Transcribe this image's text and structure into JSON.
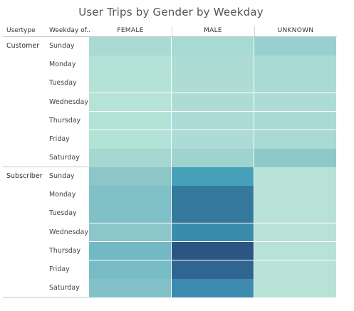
{
  "chart_data": {
    "type": "heatmap",
    "title": "User Trips by Gender by Weekday",
    "row_headers": [
      "Usertype",
      "Weekday of.."
    ],
    "columns": [
      "FEMALE",
      "MALE",
      "UNKNOWN"
    ],
    "groups": [
      {
        "name": "Customer",
        "rows": [
          "Sunday",
          "Monday",
          "Tuesday",
          "Wednesday",
          "Thursday",
          "Friday",
          "Saturday"
        ],
        "colors": [
          [
            "#a9dbd2",
            "#a6dad3",
            "#99d0cf"
          ],
          [
            "#b3e2d6",
            "#addcd5",
            "#aadad4"
          ],
          [
            "#b4e2d6",
            "#aedcd5",
            "#aadad4"
          ],
          [
            "#b6e3d7",
            "#aedcd5",
            "#acdcd5"
          ],
          [
            "#b3e2d6",
            "#acdcd5",
            "#aadad4"
          ],
          [
            "#b3e2d6",
            "#acdcd5",
            "#a8d9d3"
          ],
          [
            "#a6d8d1",
            "#9fd3cf",
            "#8ec9c9"
          ]
        ]
      },
      {
        "name": "Subscriber",
        "rows": [
          "Sunday",
          "Monday",
          "Tuesday",
          "Wednesday",
          "Thursday",
          "Friday",
          "Saturday"
        ],
        "colors": [
          [
            "#8cc6c9",
            "#46a0b8",
            "#b8e2d6"
          ],
          [
            "#80c0c7",
            "#357a9d",
            "#b8e2d6"
          ],
          [
            "#80c0c7",
            "#357a9d",
            "#b8e2d6"
          ],
          [
            "#8cc6c9",
            "#3b8bab",
            "#b8e2d6"
          ],
          [
            "#72b9c5",
            "#2c5583",
            "#b8e2d6"
          ],
          [
            "#78bcc6",
            "#2f6690",
            "#b8e2d6"
          ],
          [
            "#82c1c8",
            "#3d8bb1",
            "#b8e2d6"
          ]
        ]
      }
    ]
  }
}
